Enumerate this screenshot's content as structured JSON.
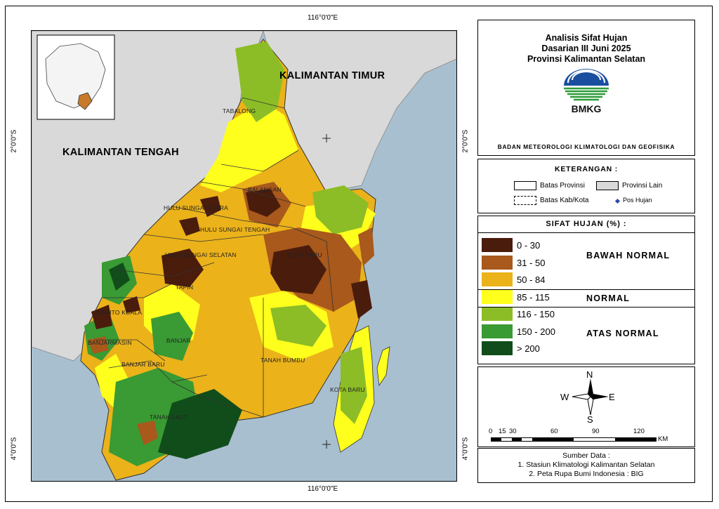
{
  "coords": {
    "top_lon": "116°0'0\"E",
    "bottom_lon": "116°0'0\"E",
    "left_lat_upper": "2°0'0\"S",
    "left_lat_lower": "4°0'0\"S",
    "right_lat_upper": "2°0'0\"S",
    "right_lat_lower": "4°0'0\"S"
  },
  "map": {
    "label_kaltim": "KALIMANTAN TIMUR",
    "label_kalteng": "KALIMANTAN TENGAH",
    "regions": {
      "tabalong": "TABALONG",
      "balangan": "BALANGAN",
      "hsu": "HULU SUNGAI UTARA",
      "hst": "HULU SUNGAI TENGAH",
      "hss": "HULU SUNGAI SELATAN",
      "kotabaru_n": "KOTA BARU",
      "tapin": "TAPIN",
      "barito_kuala": "BARITO KUALA",
      "banjar": "BANJAR",
      "banjarmasin": "BANJARMASIN",
      "banjarbaru": "BANJAR BARU",
      "tanah_bumbu": "TANAH BUMBU",
      "kotabaru_s": "KOTA BARU",
      "tanah_laut": "TANAH LAUT"
    }
  },
  "title": {
    "line1": "Analisis Sifat Hujan",
    "line2": "Dasarian III Juni 2025",
    "line3": "Provinsi Kalimantan Selatan",
    "logo_text": "BMKG",
    "agency": "BADAN METEOROLOGI KLIMATOLOGI DAN GEOFISIKA"
  },
  "legend": {
    "title": "KETERANGAN :",
    "batas_provinsi": "Batas Provinsi",
    "provinsi_lain": "Provinsi Lain",
    "batas_kab": "Batas Kab/Kota",
    "pos_hujan": "Pos Hujan"
  },
  "sifat": {
    "title": "SIFAT HUJAN (%) :",
    "classes": [
      {
        "label": "0 - 30",
        "color": "#4a1c0c"
      },
      {
        "label": "31 - 50",
        "color": "#a8591b"
      },
      {
        "label": "50 - 84",
        "color": "#ebb21a"
      },
      {
        "label": "85 - 115",
        "color": "#ffff1e"
      },
      {
        "label": "116 - 150",
        "color": "#8cbd26"
      },
      {
        "label": "150 - 200",
        "color": "#3a9a33"
      },
      {
        "label": "> 200",
        "color": "#114d1a"
      }
    ],
    "cat_bawah": "BAWAH NORMAL",
    "cat_normal": "NORMAL",
    "cat_atas": "ATAS NORMAL"
  },
  "compass": {
    "n": "N",
    "s": "S",
    "e": "E",
    "w": "W",
    "scale_ticks": [
      "0",
      "15",
      "30",
      "60",
      "90",
      "120"
    ],
    "scale_unit": "KM"
  },
  "source": {
    "title": "Sumber Data :",
    "line1": "1. Stasiun Klimatologi Kalimantan Selatan",
    "line2": "2. Peta Rupa Bumi Indonesia : BIG"
  },
  "colors": {
    "sea": "#a8bfcf",
    "other_province": "#d9d9d9"
  }
}
